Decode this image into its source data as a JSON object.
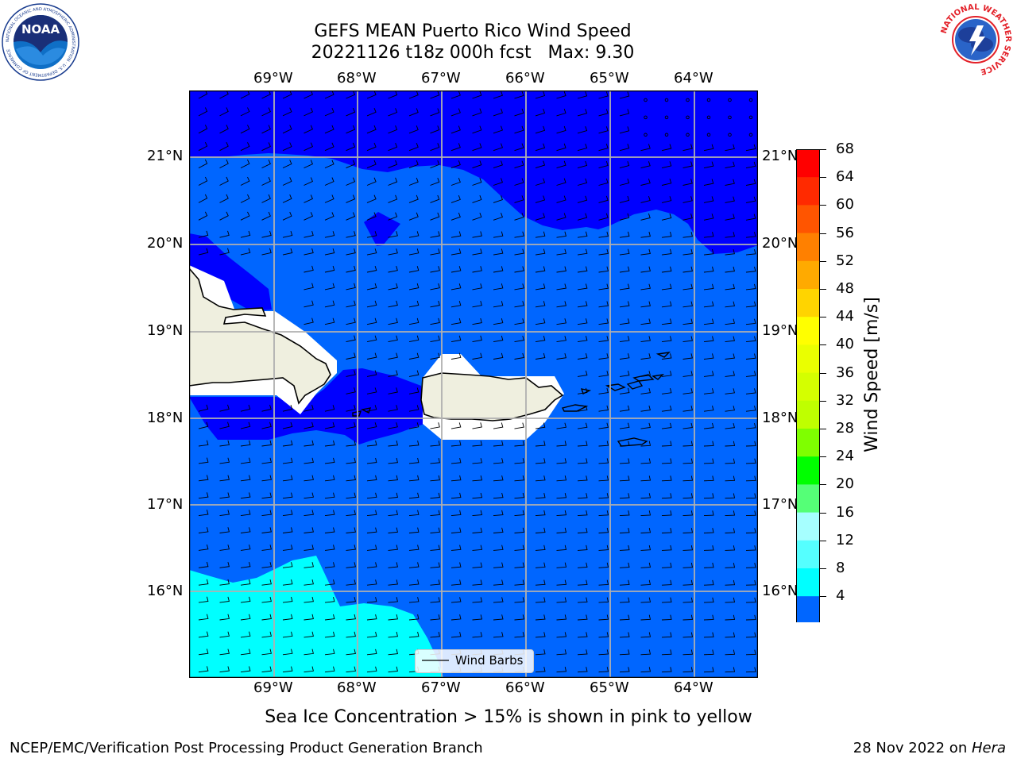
{
  "title": {
    "line1": "GEFS MEAN Puerto Rico Wind Speed",
    "line2": "20221126 t18z 000h fcst   Max: 9.30"
  },
  "map": {
    "lon_labels": [
      "69°W",
      "68°W",
      "67°W",
      "66°W",
      "65°W",
      "64°W"
    ],
    "lat_labels": [
      "21°N",
      "20°N",
      "19°N",
      "18°N",
      "17°N",
      "16°N"
    ],
    "legend_label": "Wind Barbs",
    "land_color": "#efefdf",
    "ocean_colors": {
      "4_to_8": "#0066ff",
      "below_4": "#0000ff",
      "8_to_12": "#00ffff",
      "no_data": "#ffffff"
    }
  },
  "colorbar": {
    "label": "Wind Speed [m/s]",
    "ticks": [
      "68",
      "64",
      "60",
      "56",
      "52",
      "48",
      "44",
      "40",
      "36",
      "32",
      "28",
      "24",
      "20",
      "16",
      "12",
      "8",
      "4"
    ],
    "colors_top_to_bottom": [
      "#ff0000",
      "#ff2a00",
      "#ff5500",
      "#ff8000",
      "#ffaa00",
      "#ffd400",
      "#ffff00",
      "#eaff00",
      "#d4ff00",
      "#bfff00",
      "#7fff00",
      "#00ff00",
      "#55ff77",
      "#a6ffff",
      "#55ffff",
      "#00ffff",
      "#0066ff"
    ],
    "extend_color": "#0000ff"
  },
  "caption": "Sea Ice Concentration > 15% is shown in pink to yellow",
  "footer": {
    "left": "NCEP/EMC/Verification Post Processing Product Generation Branch",
    "right_date": "28 Nov 2022 on ",
    "right_host": "Hera"
  },
  "logos": {
    "noaa_text": "NOAA",
    "nws_ring_text": "NATIONAL WEATHER SERVICE",
    "noaa_ring_text": "NATIONAL OCEANIC AND ATMOSPHERIC ADMINISTRATION · U.S. DEPARTMENT OF COMMERCE"
  }
}
